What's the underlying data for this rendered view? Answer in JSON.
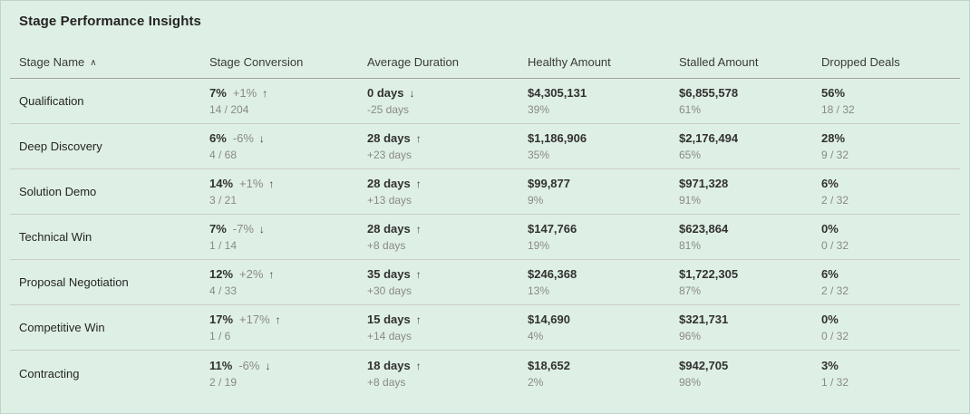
{
  "title": "Stage Performance Insights",
  "colors": {
    "background": "#def0e5",
    "header_divider": "#a2a09e",
    "row_divider": "#c9ccc8",
    "primary_text": "#323130",
    "secondary_text": "#8a8886"
  },
  "table": {
    "sort_icon": "∧",
    "columns": [
      {
        "label": "Stage Name",
        "sorted": "asc"
      },
      {
        "label": "Stage Conversion"
      },
      {
        "label": "Average Duration"
      },
      {
        "label": "Healthy Amount"
      },
      {
        "label": "Stalled Amount"
      },
      {
        "label": "Dropped Deals"
      }
    ],
    "rows": [
      {
        "stage": "Qualification",
        "conversion": {
          "value": "7%",
          "delta": "+1%",
          "arrow": "↑",
          "detail": "14 / 204"
        },
        "duration": {
          "value": "0 days",
          "arrow": "↓",
          "detail": "-25 days"
        },
        "healthy": {
          "value": "$4,305,131",
          "detail": "39%"
        },
        "stalled": {
          "value": "$6,855,578",
          "detail": "61%"
        },
        "dropped": {
          "value": "56%",
          "detail": "18 / 32"
        }
      },
      {
        "stage": "Deep Discovery",
        "conversion": {
          "value": "6%",
          "delta": "-6%",
          "arrow": "↓",
          "detail": "4 / 68"
        },
        "duration": {
          "value": "28 days",
          "arrow": "↑",
          "detail": "+23 days"
        },
        "healthy": {
          "value": "$1,186,906",
          "detail": "35%"
        },
        "stalled": {
          "value": "$2,176,494",
          "detail": "65%"
        },
        "dropped": {
          "value": "28%",
          "detail": "9 / 32"
        }
      },
      {
        "stage": "Solution Demo",
        "conversion": {
          "value": "14%",
          "delta": "+1%",
          "arrow": "↑",
          "detail": "3 / 21"
        },
        "duration": {
          "value": "28 days",
          "arrow": "↑",
          "detail": "+13 days"
        },
        "healthy": {
          "value": "$99,877",
          "detail": "9%"
        },
        "stalled": {
          "value": "$971,328",
          "detail": "91%"
        },
        "dropped": {
          "value": "6%",
          "detail": "2 / 32"
        }
      },
      {
        "stage": "Technical Win",
        "conversion": {
          "value": "7%",
          "delta": "-7%",
          "arrow": "↓",
          "detail": "1 / 14"
        },
        "duration": {
          "value": "28 days",
          "arrow": "↑",
          "detail": "+8 days"
        },
        "healthy": {
          "value": "$147,766",
          "detail": "19%"
        },
        "stalled": {
          "value": "$623,864",
          "detail": "81%"
        },
        "dropped": {
          "value": "0%",
          "detail": "0 / 32"
        }
      },
      {
        "stage": "Proposal Negotiation",
        "conversion": {
          "value": "12%",
          "delta": "+2%",
          "arrow": "↑",
          "detail": "4 / 33"
        },
        "duration": {
          "value": "35 days",
          "arrow": "↑",
          "detail": "+30 days"
        },
        "healthy": {
          "value": "$246,368",
          "detail": "13%"
        },
        "stalled": {
          "value": "$1,722,305",
          "detail": "87%"
        },
        "dropped": {
          "value": "6%",
          "detail": "2 / 32"
        }
      },
      {
        "stage": "Competitive Win",
        "conversion": {
          "value": "17%",
          "delta": "+17%",
          "arrow": "↑",
          "detail": "1 / 6"
        },
        "duration": {
          "value": "15 days",
          "arrow": "↑",
          "detail": "+14 days"
        },
        "healthy": {
          "value": "$14,690",
          "detail": "4%"
        },
        "stalled": {
          "value": "$321,731",
          "detail": "96%"
        },
        "dropped": {
          "value": "0%",
          "detail": "0 / 32"
        }
      },
      {
        "stage": "Contracting",
        "conversion": {
          "value": "11%",
          "delta": "-6%",
          "arrow": "↓",
          "detail": "2 / 19"
        },
        "duration": {
          "value": "18 days",
          "arrow": "↑",
          "detail": "+8 days"
        },
        "healthy": {
          "value": "$18,652",
          "detail": "2%"
        },
        "stalled": {
          "value": "$942,705",
          "detail": "98%"
        },
        "dropped": {
          "value": "3%",
          "detail": "1 / 32"
        }
      }
    ]
  }
}
